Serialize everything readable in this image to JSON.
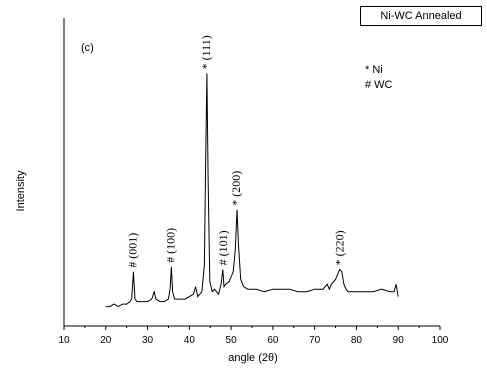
{
  "chart_data": {
    "type": "line",
    "title": "Ni-WC Annealed",
    "panel_label": "(c)",
    "xlabel": "angle (2θ)",
    "ylabel": "Intensity",
    "xlim": [
      10,
      100
    ],
    "xticks": [
      "10",
      "20",
      "30",
      "40",
      "50",
      "60",
      "70",
      "80",
      "90",
      "100"
    ],
    "ylim": [
      0,
      100
    ],
    "legend": [
      "* Ni",
      "# WC"
    ],
    "series": [
      {
        "x": [
          20,
          21,
          22,
          23,
          24,
          25,
          25.8,
          26.2,
          26.6,
          27,
          27.5,
          28,
          29,
          30,
          31,
          31.6,
          32,
          33,
          34,
          35,
          35.4,
          35.7,
          36,
          36.5,
          37,
          38,
          39,
          40,
          41,
          41.5,
          42,
          43,
          43.6,
          43.9,
          44.2,
          44.5,
          44.9,
          45.5,
          46,
          47,
          47.6,
          48,
          48.3,
          48.7,
          49.5,
          50.5,
          51,
          51.4,
          51.8,
          52.3,
          53,
          54,
          56,
          58,
          60,
          62,
          64,
          66,
          68,
          70,
          71,
          72,
          73,
          73.5,
          74,
          75,
          76,
          76.5,
          77,
          77.5,
          78,
          79,
          80,
          82,
          84,
          86,
          88,
          89,
          89.5,
          90
        ],
        "y": [
          3,
          3,
          4,
          3,
          4,
          4,
          5,
          6,
          17,
          6,
          5,
          5,
          5,
          5,
          6,
          9,
          6,
          5,
          5,
          6,
          10,
          19,
          9,
          6,
          6,
          6,
          6,
          7,
          8,
          11,
          7,
          9,
          20,
          60,
          97,
          55,
          13,
          9,
          10,
          8,
          12,
          18,
          11,
          12,
          13,
          17,
          26,
          42,
          27,
          14,
          11,
          10,
          10,
          9,
          10,
          10,
          10,
          9,
          9,
          10,
          10,
          10,
          12,
          10,
          12,
          14,
          18,
          17,
          12,
          10,
          9,
          9,
          9,
          9,
          9,
          10,
          9,
          9,
          12,
          7
        ]
      }
    ],
    "annotations": [
      {
        "x": 26.6,
        "y": 17,
        "text": "# (001)"
      },
      {
        "x": 35.7,
        "y": 19,
        "text": "# (100)"
      },
      {
        "x": 44.2,
        "y": 97,
        "text": "* (111)"
      },
      {
        "x": 48.3,
        "y": 18,
        "text": "# (101)"
      },
      {
        "x": 51.4,
        "y": 42,
        "text": "* (200)"
      },
      {
        "x": 76.2,
        "y": 18,
        "text": "* (220)"
      }
    ]
  }
}
